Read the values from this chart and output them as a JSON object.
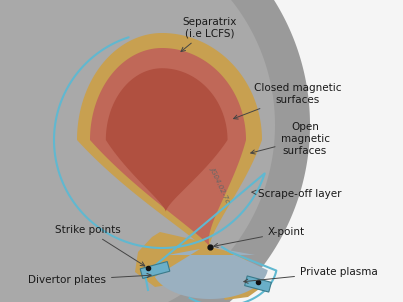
{
  "bg_color": "#f5f5f5",
  "gray_vessel_color": "#9a9a9a",
  "gray_vessel_light": "#b8b8b8",
  "sol_color": "#c8a050",
  "sol_inner_color": "#d4b070",
  "closed_surface_color": "#c06858",
  "inner_surface_color": "#b05040",
  "scrapeoff_blue": "#60b8d0",
  "divertor_plate_color": "#6aafc8",
  "divertor_plate_dark": "#3a7a8a",
  "private_plasma_color": "#9ab0c0",
  "text_color": "#1a1a1a",
  "annotation_color": "#444444",
  "dot_color": "#111111",
  "labels": {
    "separatrix": "Separatrix\n(i.e LCFS)",
    "closed_mag": "Closed magnetic\nsurfaces",
    "open_mag": "Open\nmagnetic\nsurfaces",
    "sol": "Scrape-off layer",
    "xpoint": "X-point",
    "strike": "Strike points",
    "divertor": "Divertor plates",
    "private": "Private plasma"
  },
  "watermark": "JG04.02-7c"
}
